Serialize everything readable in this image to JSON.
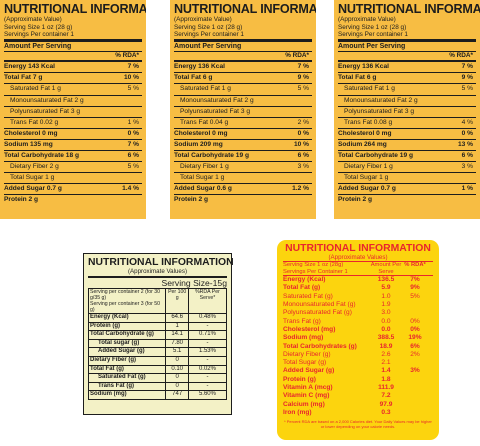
{
  "label_1": {
    "title": "NUTRITIONAL INFORMATION",
    "approx": "(Approximate Value)",
    "serving": "Serving Size 1 oz (28 g)",
    "servings_per": "Servings Per container 1",
    "amount_per": "Amount Per Serving",
    "rda_head": "% RDA*",
    "rows": [
      {
        "label": "Energy 143 Kcal",
        "value": "7 %",
        "style": "main"
      },
      {
        "label": "Total Fat 7 g",
        "value": "10 %",
        "style": "main"
      },
      {
        "label": "Saturated Fat 1 g",
        "value": "5 %",
        "style": "ind"
      },
      {
        "label": "Monounsaturated Fat 2 g",
        "value": "",
        "style": "ind"
      },
      {
        "label": "Polyunsaturated Fat 3 g",
        "value": "",
        "style": "ind"
      },
      {
        "label": "Trans Fat  0.02 g",
        "value": "1 %",
        "style": "ind"
      },
      {
        "label": "Cholesterol 0 mg",
        "value": "0 %",
        "style": "main"
      },
      {
        "label": "Sodium 135 mg",
        "value": "7 %",
        "style": "main"
      },
      {
        "label": "Total Carbohydrate 18 g",
        "value": "6 %",
        "style": "main"
      },
      {
        "label": "Dietary Fiber 2 g",
        "value": "5 %",
        "style": "ind"
      },
      {
        "label": "Total Sugar 1 g",
        "value": "",
        "style": "ind"
      },
      {
        "label": "Added Sugar 0.7 g",
        "value": "1.4 %",
        "style": "main"
      },
      {
        "label": "Protein 2 g",
        "value": "",
        "style": "main"
      }
    ]
  },
  "label_2": {
    "title": "NUTRITIONAL INFORMATION",
    "approx": "(Approximate Value)",
    "serving": "Serving Size 1 oz (28 g)",
    "servings_per": "Servings Per container 1",
    "amount_per": "Amount Per Serving",
    "rda_head": "% RDA*",
    "rows": [
      {
        "label": "Energy 136 Kcal",
        "value": "7 %",
        "style": "main"
      },
      {
        "label": "Total Fat 6 g",
        "value": "9 %",
        "style": "main"
      },
      {
        "label": "Saturated Fat 1 g",
        "value": "5 %",
        "style": "ind"
      },
      {
        "label": "Monounsaturated Fat 2 g",
        "value": "",
        "style": "ind"
      },
      {
        "label": "Polyunsaturated Fat 3 g",
        "value": "",
        "style": "ind"
      },
      {
        "label": "Trans Fat  0.04 g",
        "value": "2 %",
        "style": "ind"
      },
      {
        "label": "Cholesterol 0 mg",
        "value": "0 %",
        "style": "main"
      },
      {
        "label": "Sodium 209 mg",
        "value": "10 %",
        "style": "main"
      },
      {
        "label": "Total Carbohydrate 19 g",
        "value": "6 %",
        "style": "main"
      },
      {
        "label": "Dietary Fiber 1 g",
        "value": "3 %",
        "style": "ind"
      },
      {
        "label": "Total Sugar 1 g",
        "value": "",
        "style": "ind"
      },
      {
        "label": "Added Sugar 0.6 g",
        "value": "1.2 %",
        "style": "main"
      },
      {
        "label": "Protein 2 g",
        "value": "",
        "style": "main"
      }
    ]
  },
  "label_3": {
    "title": "NUTRITIONAL INFORMATION",
    "approx": "(Approximate Value)",
    "serving": "Serving Size 1 oz (28 g)",
    "servings_per": "Servings Per container 1",
    "amount_per": "Amount Per Serving",
    "rda_head": "% RDA*",
    "rows": [
      {
        "label": "Energy 136 Kcal",
        "value": "7 %",
        "style": "main"
      },
      {
        "label": "Total Fat 6 g",
        "value": "9 %",
        "style": "main"
      },
      {
        "label": "Saturated Fat 1 g",
        "value": "5 %",
        "style": "ind"
      },
      {
        "label": "Monounsaturated Fat 2 g",
        "value": "",
        "style": "ind"
      },
      {
        "label": "Polyunsaturated Fat 3 g",
        "value": "",
        "style": "ind"
      },
      {
        "label": "Trans Fat  0.08 g",
        "value": "4 %",
        "style": "ind"
      },
      {
        "label": "Cholesterol 0 mg",
        "value": "0 %",
        "style": "main"
      },
      {
        "label": "Sodium 264 mg",
        "value": "13 %",
        "style": "main"
      },
      {
        "label": "Total Carbohydrate 19 g",
        "value": "6 %",
        "style": "main"
      },
      {
        "label": "Dietary Fiber 1 g",
        "value": "3 %",
        "style": "ind"
      },
      {
        "label": "Total Sugar 1 g",
        "value": "",
        "style": "ind"
      },
      {
        "label": "Added Sugar 0.7 g",
        "value": "1 %",
        "style": "main"
      },
      {
        "label": "Protein 2 g",
        "value": "",
        "style": "main"
      }
    ]
  },
  "label_4": {
    "title": "NUTRITIONAL INFORMATION",
    "approx": "(Approximate Values)",
    "serving": "Serving Size-15g",
    "serving_line_1": "Serving per container 2 (for 30 g/35 g)",
    "serving_line_2": "Serving per container 3 (for 50 g)",
    "col_per": "Per 100 g",
    "col_rda": "%RDA Per Serve*",
    "rows": [
      {
        "label": "Energy (Kcal)",
        "per": "64.6",
        "rda": "0.48%",
        "style": "b"
      },
      {
        "label": "Protein (g)",
        "per": "1",
        "rda": "-",
        "style": "b"
      },
      {
        "label": "Total Carbohydrate (g)",
        "per": "14.1",
        "rda": "0.71%",
        "style": "b"
      },
      {
        "label": "Total sugar (g)",
        "per": "7.80",
        "rda": "-",
        "style": "bi"
      },
      {
        "label": "Added Sugar (g)",
        "per": "5.1",
        "rda": "1.53%",
        "style": "bi"
      },
      {
        "label": "Dietary Fiber (g)",
        "per": "0",
        "rda": "-",
        "style": "b"
      },
      {
        "label": "Total Fat (g)",
        "per": "0.10",
        "rda": "0.02%",
        "style": "b"
      },
      {
        "label": "Saturated Fat (g)",
        "per": "0",
        "rda": "-",
        "style": "bi"
      },
      {
        "label": "Trans Fat (g)",
        "per": "0",
        "rda": "-",
        "style": "bi"
      },
      {
        "label": "Sodium (mg)",
        "per": "747",
        "rda": "5.60%",
        "style": "b"
      }
    ]
  },
  "label_5": {
    "title": "NUTRITIONAL INFORMATION",
    "approx": "(Approximate Values)",
    "serving": "Serving Size 1 oz (28g)",
    "servings_per": "Servings Per Container 1",
    "col_amount": "Amount Per Serve",
    "col_rda": "% RDA*",
    "rows": [
      {
        "label": "Energy (Kcal)",
        "amount": "136.5",
        "rda": "7%",
        "style": "b"
      },
      {
        "label": "Total Fat (g)",
        "amount": "5.9",
        "rda": "9%",
        "style": "b"
      },
      {
        "label": "Saturated Fat (g)",
        "amount": "1.0",
        "rda": "5%",
        "style": "n"
      },
      {
        "label": "Monounsaturated Fat (g)",
        "amount": "1.9",
        "rda": "",
        "style": "n"
      },
      {
        "label": "Polyunsaturated Fat (g)",
        "amount": "3.0",
        "rda": "",
        "style": "n"
      },
      {
        "label": "Trans Fat (g)",
        "amount": "0.0",
        "rda": "0%",
        "style": "n"
      },
      {
        "label": "Cholesterol (mg)",
        "amount": "0.0",
        "rda": "0%",
        "style": "b"
      },
      {
        "label": "Sodium (mg)",
        "amount": "388.5",
        "rda": "19%",
        "style": "b"
      },
      {
        "label": "Total Carbohydrates (g)",
        "amount": "18.9",
        "rda": "6%",
        "style": "b"
      },
      {
        "label": "Dietary Fiber (g)",
        "amount": "2.6",
        "rda": "2%",
        "style": "n"
      },
      {
        "label": "Total Sugar (g)",
        "amount": "2.1",
        "rda": "",
        "style": "n"
      },
      {
        "label": "Added Sugar (g)",
        "amount": "1.4",
        "rda": "3%",
        "style": "b"
      },
      {
        "label": "Protein (g)",
        "amount": "1.8",
        "rda": "",
        "style": "b"
      },
      {
        "label": "Vitamin A (mcg)",
        "amount": "111.9",
        "rda": "",
        "style": "b"
      },
      {
        "label": "Vitamin C (mg)",
        "amount": "7.2",
        "rda": "",
        "style": "b"
      },
      {
        "label": "Calcium (mg)",
        "amount": "97.9",
        "rda": "",
        "style": "b"
      },
      {
        "label": "Iron (mg)",
        "amount": "0.3",
        "rda": "",
        "style": "b"
      }
    ],
    "footnote": "* Percent RDA are based on a 2,000 Calories diet. Your Daily Values may be higher or lower depending on your calorie needs."
  }
}
